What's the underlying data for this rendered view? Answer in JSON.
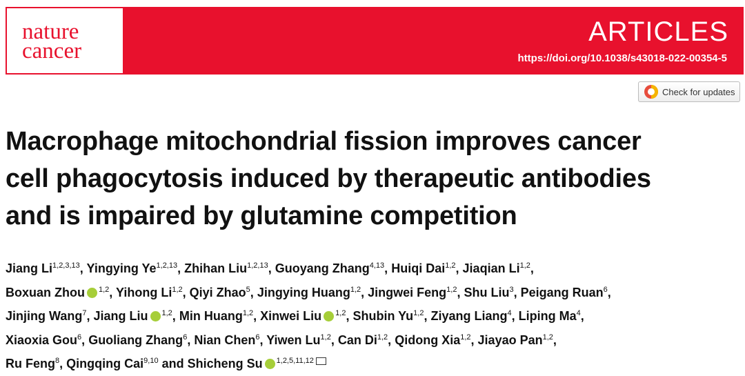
{
  "header": {
    "journal_line1": "nature",
    "journal_line2": "cancer",
    "section": "ARTICLES",
    "doi": "https://doi.org/10.1038/s43018-022-00354-5",
    "updates_button": "Check for updates"
  },
  "title_lines": [
    "Macrophage mitochondrial fission improves cancer",
    "cell phagocytosis induced by therapeutic antibodies",
    "and is impaired by glutamine competition"
  ],
  "authors": [
    [
      {
        "name": "Jiang Li",
        "sup": "1,2,3,13",
        "sep": ","
      },
      {
        "name": "Yingying Ye",
        "sup": "1,2,13",
        "sep": ","
      },
      {
        "name": "Zhihan Liu",
        "sup": "1,2,13",
        "sep": ","
      },
      {
        "name": "Guoyang Zhang",
        "sup": "4,13",
        "sep": ","
      },
      {
        "name": "Huiqi Dai",
        "sup": "1,2",
        "sep": ","
      },
      {
        "name": "Jiaqian Li",
        "sup": "1,2",
        "sep": ","
      }
    ],
    [
      {
        "name": "Boxuan Zhou",
        "orcid": true,
        "sup": "1,2",
        "sep": ","
      },
      {
        "name": "Yihong Li",
        "sup": "1,2",
        "sep": ","
      },
      {
        "name": "Qiyi Zhao",
        "sup": "5",
        "sep": ","
      },
      {
        "name": "Jingying Huang",
        "sup": "1,2",
        "sep": ","
      },
      {
        "name": "Jingwei Feng",
        "sup": "1,2",
        "sep": ","
      },
      {
        "name": "Shu Liu",
        "sup": "3",
        "sep": ","
      },
      {
        "name": "Peigang Ruan",
        "sup": "6",
        "sep": ","
      }
    ],
    [
      {
        "name": "Jinjing Wang",
        "sup": "7",
        "sep": ","
      },
      {
        "name": "Jiang Liu",
        "orcid": true,
        "sup": "1,2",
        "sep": ","
      },
      {
        "name": "Min Huang",
        "sup": "1,2",
        "sep": ","
      },
      {
        "name": "Xinwei Liu",
        "orcid": true,
        "sup": "1,2",
        "sep": ","
      },
      {
        "name": "Shubin Yu",
        "sup": "1,2",
        "sep": ","
      },
      {
        "name": "Ziyang Liang",
        "sup": "4",
        "sep": ","
      },
      {
        "name": "Liping Ma",
        "sup": "4",
        "sep": ","
      }
    ],
    [
      {
        "name": "Xiaoxia Gou",
        "sup": "6",
        "sep": ","
      },
      {
        "name": "Guoliang Zhang",
        "sup": "6",
        "sep": ","
      },
      {
        "name": "Nian Chen",
        "sup": "6",
        "sep": ","
      },
      {
        "name": "Yiwen Lu",
        "sup": "1,2",
        "sep": ","
      },
      {
        "name": "Can Di",
        "sup": "1,2",
        "sep": ","
      },
      {
        "name": "Qidong Xia",
        "sup": "1,2",
        "sep": ","
      },
      {
        "name": "Jiayao Pan",
        "sup": "1,2",
        "sep": ","
      }
    ],
    [
      {
        "name": "Ru Feng",
        "sup": "8",
        "sep": ","
      },
      {
        "name": "Qingqing Cai",
        "sup": "9,10"
      },
      {
        "prefix": "and",
        "name": "Shicheng Su",
        "orcid": true,
        "sup": "1,2,5,11,12",
        "email": true
      }
    ]
  ]
}
